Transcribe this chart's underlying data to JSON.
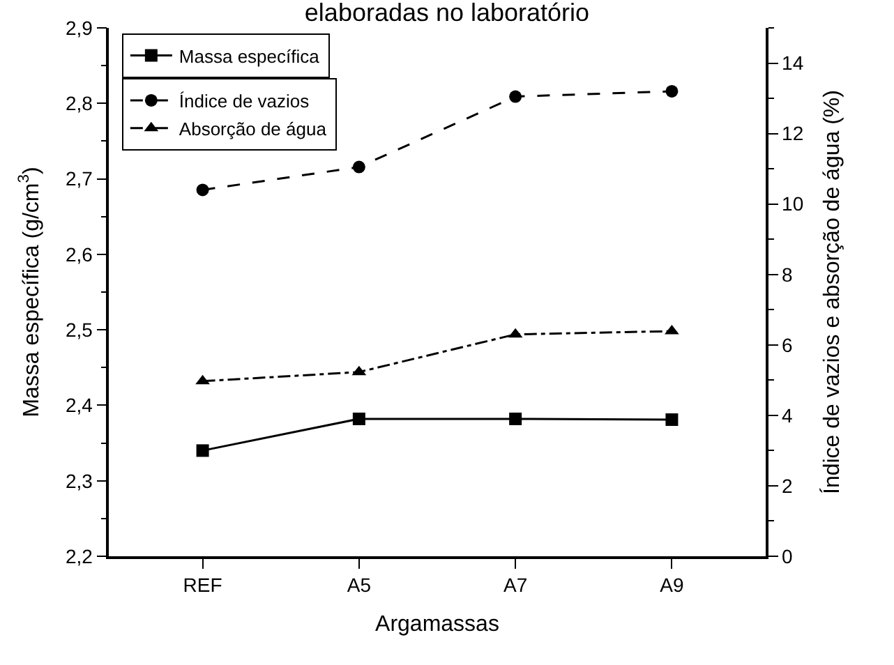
{
  "chart_data": {
    "type": "line",
    "title": "elaboradas no laboratório",
    "xlabel": "Argamassas",
    "ylabel": "Massa específica (g/cm$^{3}$)",
    "y2label": "Índice de vazios e absorção de água (%)",
    "categories": [
      "REF",
      "A5",
      "A7",
      "A9"
    ],
    "series": [
      {
        "name": "Massa específica",
        "color": "#000000",
        "values": [
          2.34,
          2.382,
          2.382,
          2.381
        ],
        "marker": "square",
        "line_style": "solid"
      },
      {
        "name": "Índice de vazios",
        "color": "#000000",
        "values": [
          10.4,
          11.05,
          13.05,
          13.2
        ],
        "marker": "circle",
        "line_style": "dashed",
        "axis": "y2"
      },
      {
        "name": "Absorção de água",
        "color": "#000000",
        "values": [
          4.97,
          5.23,
          6.3,
          6.39
        ],
        "marker": "triangle",
        "line_style": "dashdot",
        "axis": "y2"
      }
    ],
    "ylim": [
      2.2,
      2.9
    ],
    "yticks": [
      {
        "value": 2.2,
        "label": "2,2"
      },
      {
        "value": 2.3,
        "label": "2,3"
      },
      {
        "value": 2.4,
        "label": "2,4"
      },
      {
        "value": 2.5,
        "label": "2,5"
      },
      {
        "value": 2.6,
        "label": "2,6"
      },
      {
        "value": 2.7,
        "label": "2,7"
      },
      {
        "value": 2.8,
        "label": "2,8"
      },
      {
        "value": 2.9,
        "label": "2,9"
      }
    ],
    "y2lim": [
      0,
      15
    ],
    "y2ticks": [
      0,
      2,
      4,
      6,
      8,
      10,
      12,
      14
    ],
    "legend": "top left"
  }
}
